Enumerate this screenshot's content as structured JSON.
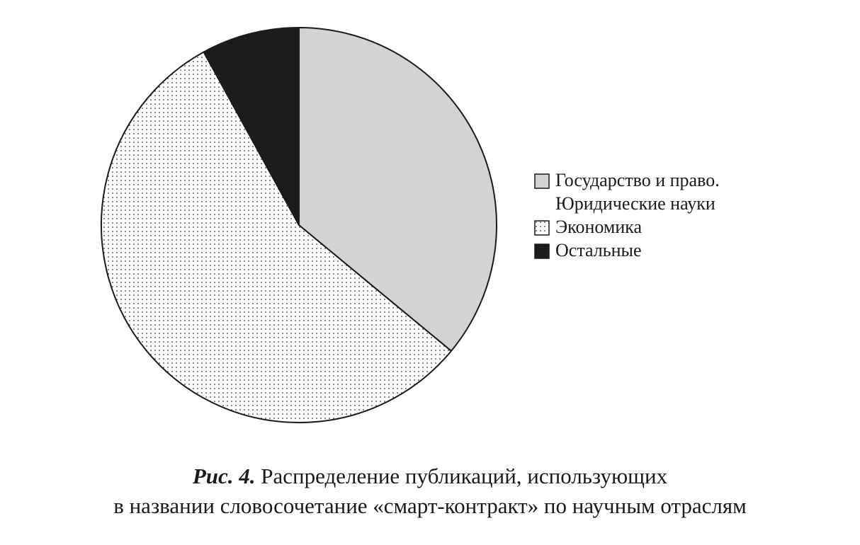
{
  "chart_data": {
    "type": "pie",
    "figure_label": "Рис. 4.",
    "title": [
      "Распределение публикаций, использующих",
      "в названии словосочетание «смарт-контракт» по научным отраслям"
    ],
    "categories": [
      "Государство и право. Юридические науки",
      "Экономика",
      "Остальные"
    ],
    "values": [
      36,
      56,
      8
    ],
    "colors": [
      "#d3d3d3",
      "#ffffff",
      "#1c1c1c"
    ],
    "patterns": [
      null,
      "dots",
      null
    ],
    "start_angle": 90,
    "direction": "clockwise",
    "legend": "right"
  }
}
